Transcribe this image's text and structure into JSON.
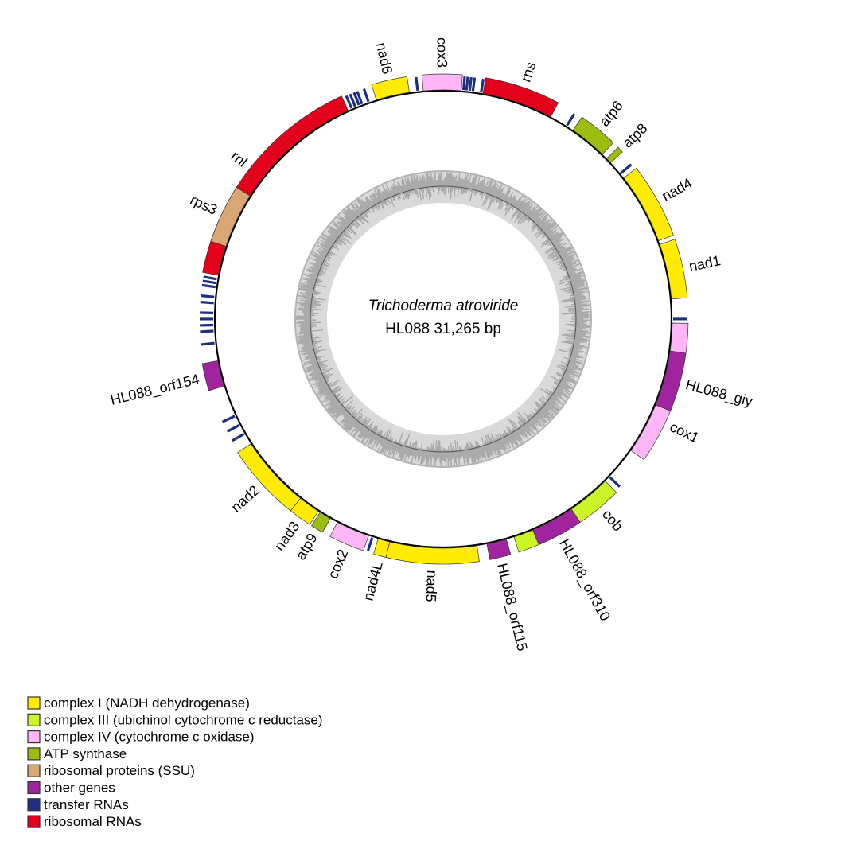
{
  "map": {
    "organism": "Trichoderma atroviride",
    "subtitle": "HL088  31,265 bp",
    "genome_length_bp": 31265
  },
  "categories": {
    "complex1": {
      "label": "complex I (NADH dehydrogenase)",
      "color": "#ffec00"
    },
    "complex3": {
      "label": "complex III (ubichinol cytochrome c reductase)",
      "color": "#ccf527"
    },
    "complex4": {
      "label": "complex IV (cytochrome c oxidase)",
      "color": "#ffb6f6"
    },
    "atp": {
      "label": "ATP synthase",
      "color": "#9abd10"
    },
    "ribprot": {
      "label": "ribosomal proteins (SSU)",
      "color": "#d8a774"
    },
    "other": {
      "label": "other genes",
      "color": "#a1249f"
    },
    "trna": {
      "label": "transfer RNAs",
      "color": "#1c2f80"
    },
    "rrna": {
      "label": "ribosomal RNAs",
      "color": "#e3001b"
    }
  },
  "legend_order": [
    "complex1",
    "complex3",
    "complex4",
    "atp",
    "ribprot",
    "other",
    "trna",
    "rrna"
  ],
  "genes": [
    {
      "name": "nad6",
      "cat": "complex1",
      "start": 29790,
      "end": 30528,
      "label": "nad6"
    },
    {
      "name": "trnA",
      "cat": "trna",
      "start": 30680,
      "end": 30740
    },
    {
      "name": "cox3",
      "cat": "complex4",
      "start": 30832,
      "end": 392,
      "label": "cox3"
    },
    {
      "name": "trn1",
      "cat": "trna",
      "start": 420,
      "end": 460
    },
    {
      "name": "trn2",
      "cat": "trna",
      "start": 485,
      "end": 525
    },
    {
      "name": "trn3",
      "cat": "trna",
      "start": 555,
      "end": 595
    },
    {
      "name": "trn4",
      "cat": "trna",
      "start": 625,
      "end": 665
    },
    {
      "name": "trn5",
      "cat": "trna",
      "start": 805,
      "end": 845
    },
    {
      "name": "rns",
      "cat": "rrna",
      "start": 869,
      "end": 2432,
      "label": "rns"
    },
    {
      "name": "trn6",
      "cat": "trna",
      "start": 2810,
      "end": 2850
    },
    {
      "name": "atp6",
      "cat": "atp",
      "start": 2996,
      "end": 3821,
      "label": "atp6"
    },
    {
      "name": "atp8",
      "cat": "atp",
      "start": 3952,
      "end": 4082,
      "label": "atp8"
    },
    {
      "name": "trn7",
      "cat": "trna",
      "start": 4375,
      "end": 4415
    },
    {
      "name": "nad4",
      "cat": "complex1",
      "start": 4516,
      "end": 6080,
      "label": "nad4"
    },
    {
      "name": "nad1",
      "cat": "complex1",
      "start": 6166,
      "end": 7382,
      "label": "nad1"
    },
    {
      "name": "trn8",
      "cat": "trna",
      "start": 7795,
      "end": 7835
    },
    {
      "name": "cox1",
      "cat": "complex4",
      "start": 7903,
      "end": 10856,
      "label": "cox1",
      "label_at": 10000
    },
    {
      "name": "HL088_giy",
      "cat": "other",
      "start": 8511,
      "end": 9727,
      "label": "HL088_giy"
    },
    {
      "name": "trn9",
      "cat": "trna",
      "start": 11575,
      "end": 11615
    },
    {
      "name": "cob",
      "cat": "complex3",
      "start": 11725,
      "end": 14070,
      "label": "cob",
      "label_at": 12150
    },
    {
      "name": "HL088_orf310",
      "cat": "other",
      "start": 12680,
      "end": 13636,
      "label": "HL088_orf310"
    },
    {
      "name": "HL088_orf115",
      "cat": "other",
      "start": 14243,
      "end": 14678,
      "label": "HL088_orf115"
    },
    {
      "name": "nad5",
      "cat": "complex1",
      "start": 14895,
      "end": 16805,
      "label": "nad5"
    },
    {
      "name": "nad4L",
      "cat": "complex1",
      "start": 16805,
      "end": 17066,
      "label": "nad4L"
    },
    {
      "name": "trn10",
      "cat": "trna",
      "start": 17175,
      "end": 17215
    },
    {
      "name": "cox2",
      "cat": "complex4",
      "start": 17283,
      "end": 18022,
      "label": "cox2"
    },
    {
      "name": "atp9",
      "cat": "atp",
      "start": 18195,
      "end": 18456,
      "label": "atp9"
    },
    {
      "name": "nad3",
      "cat": "complex1",
      "start": 18499,
      "end": 18977,
      "label": "nad3"
    },
    {
      "name": "nad2",
      "cat": "complex1",
      "start": 18977,
      "end": 20584,
      "label": "nad2"
    },
    {
      "name": "trn11",
      "cat": "trna",
      "start": 20825,
      "end": 20865
    },
    {
      "name": "trn12",
      "cat": "trna",
      "start": 21040,
      "end": 21080
    },
    {
      "name": "trn13",
      "cat": "trna",
      "start": 21260,
      "end": 21300
    },
    {
      "name": "HL088_orf154",
      "cat": "other",
      "start": 21973,
      "end": 22538,
      "label": "HL088_orf154"
    },
    {
      "name": "trn14",
      "cat": "trna",
      "start": 22908,
      "end": 22948
    },
    {
      "name": "trn15",
      "cat": "trna",
      "start": 23170,
      "end": 23210
    },
    {
      "name": "trn16",
      "cat": "trna",
      "start": 23300,
      "end": 23340
    },
    {
      "name": "trn17",
      "cat": "trna",
      "start": 23430,
      "end": 23470
    },
    {
      "name": "trn18",
      "cat": "trna",
      "start": 23560,
      "end": 23600
    },
    {
      "name": "trn19",
      "cat": "trna",
      "start": 23777,
      "end": 23817
    },
    {
      "name": "trn20",
      "cat": "trna",
      "start": 23908,
      "end": 23948
    },
    {
      "name": "trn21",
      "cat": "trna",
      "start": 24125,
      "end": 24165
    },
    {
      "name": "trn22",
      "cat": "trna",
      "start": 24212,
      "end": 24252
    },
    {
      "name": "trn23",
      "cat": "trna",
      "start": 24298,
      "end": 24338
    },
    {
      "name": "rnl",
      "cat": "rrna",
      "start": 24405,
      "end": 29138,
      "label": "rnl",
      "label_at": 26760
    },
    {
      "name": "rps3",
      "cat": "ribprot",
      "start": 25057,
      "end": 26273,
      "label": "rps3"
    },
    {
      "name": "trn24",
      "cat": "trna",
      "start": 29205,
      "end": 29245
    },
    {
      "name": "trn25",
      "cat": "trna",
      "start": 29292,
      "end": 29332
    },
    {
      "name": "trn26",
      "cat": "trna",
      "start": 29379,
      "end": 29419
    },
    {
      "name": "trn27",
      "cat": "trna",
      "start": 29448,
      "end": 29488
    },
    {
      "name": "trn28",
      "cat": "trna",
      "start": 29596,
      "end": 29636
    }
  ]
}
